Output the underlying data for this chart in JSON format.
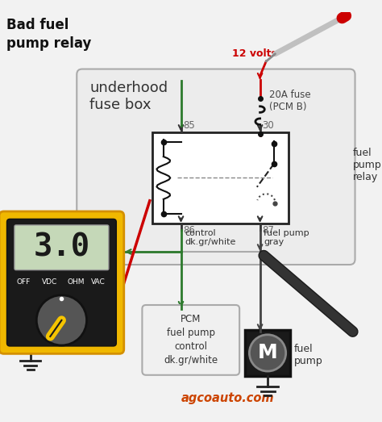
{
  "title": "Bad fuel\npump relay",
  "bg_color": "#f2f2f2",
  "fuse_box_label": "underhood\nfuse box",
  "fuse_label": "20A fuse\n(PCM B)",
  "relay_label": "fuel\npump\nrelay",
  "fuel_pump_label": "fuel\npump",
  "pcm_label": "PCM\nfuel pump\ncontrol\ndk.gr/white",
  "control_label": "control\ndk.gr/white",
  "fuel_pump_gray_label": "fuel pump\ngray",
  "volts_label": "12 volts",
  "watermark": "agcoauto.com",
  "display_value": "3.0",
  "wire_green": "#2d7a2d",
  "wire_red": "#cc0000",
  "wire_dark": "#444444",
  "wire_gray": "#888888",
  "meter_yellow_color": "#f0b800",
  "meter_body_color": "#1a1a1a",
  "meter_display_bg": "#c5d8b8",
  "pcm_box_color": "#f0f0f0",
  "node_color": "#666666",
  "fuse_box_bg": "#ececec",
  "relay_box_color": "#ffffff"
}
